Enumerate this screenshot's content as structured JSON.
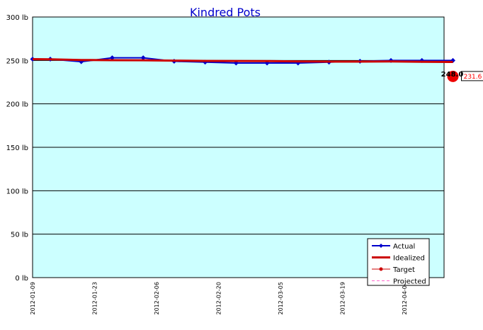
{
  "chart_data": {
    "type": "line",
    "title": "Kindred Pots",
    "xlabel": "",
    "ylabel": "",
    "ylim": [
      0,
      300
    ],
    "y_unit": "lb",
    "y_ticks": [
      {
        "value": 0,
        "label": "0 lb"
      },
      {
        "value": 50,
        "label": "50 lb"
      },
      {
        "value": 100,
        "label": "100 lb"
      },
      {
        "value": 150,
        "label": "150 lb"
      },
      {
        "value": 200,
        "label": "200 lb"
      },
      {
        "value": 250,
        "label": "250 lb"
      },
      {
        "value": 300,
        "label": "300 lb"
      }
    ],
    "xlim": [
      "2012-01-09",
      "2012-04-11"
    ],
    "x_ticks": [
      "2012-01-09",
      "2012-01-23",
      "2012-02-06",
      "2012-02-20",
      "2012-03-05",
      "2012-03-19",
      "2012-04-02"
    ],
    "x_tick_labels": [
      "2012-01-09",
      "2012-01-23",
      "2012-02-06",
      "2012-02-20",
      "2012-03-05",
      "2012-03-19",
      "2012-04-02"
    ],
    "grid": {
      "horizontal": true,
      "vertical": false
    },
    "background_color": "#ccffff",
    "legend_placement": "bottom-right",
    "legend": [
      {
        "name": "Actual",
        "color": "#0000cc",
        "style": "line-with-diamond-markers"
      },
      {
        "name": "Idealized",
        "color": "#cc0000",
        "style": "thick-line"
      },
      {
        "name": "Target",
        "color": "#cc0000",
        "style": "line-with-circle-marker"
      },
      {
        "name": "Projected",
        "color": "#ff66cc",
        "style": "dashed-line"
      }
    ],
    "series": [
      {
        "name": "Actual",
        "color": "#0000cc",
        "x": [
          "2012-01-09",
          "2012-01-13",
          "2012-01-20",
          "2012-01-27",
          "2012-02-03",
          "2012-02-10",
          "2012-02-17",
          "2012-02-24",
          "2012-03-02",
          "2012-03-09",
          "2012-03-16",
          "2012-03-23",
          "2012-03-30",
          "2012-04-06",
          "2012-04-13"
        ],
        "values": [
          251.5,
          251.5,
          248.5,
          253.0,
          253.0,
          249.0,
          248.0,
          247.0,
          247.0,
          247.0,
          248.0,
          249.0,
          250.0,
          250.0,
          250.0
        ]
      },
      {
        "name": "Idealized",
        "color": "#cc0000",
        "x": [
          "2012-01-09",
          "2012-01-13",
          "2012-01-20",
          "2012-01-27",
          "2012-02-03",
          "2012-02-10",
          "2012-02-17",
          "2012-02-24",
          "2012-03-02",
          "2012-03-09",
          "2012-03-16",
          "2012-03-23",
          "2012-03-30",
          "2012-04-06",
          "2012-04-13"
        ],
        "values": [
          251.5,
          251.3,
          250.5,
          250.3,
          250.2,
          249.8,
          249.5,
          249.4,
          249.3,
          248.8,
          248.6,
          248.6,
          248.8,
          248.4,
          248.2
        ]
      }
    ],
    "target": {
      "x": "2012-04-13",
      "value": 231.6,
      "label": "231.6",
      "color": "#cc0000"
    },
    "annotations": [
      {
        "text": "248.0",
        "x": "2012-04-13",
        "value": 248.0
      }
    ]
  }
}
